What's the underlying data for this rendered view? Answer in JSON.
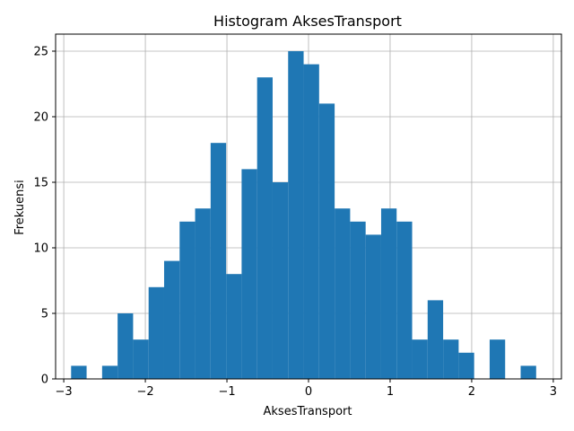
{
  "chart_data": {
    "type": "bar",
    "title": "Histogram AksesTransport",
    "xlabel": "AksesTransport",
    "ylabel": "Frekuensi",
    "xlim": [
      -3.1,
      3.1
    ],
    "ylim": [
      0,
      26.3
    ],
    "grid": true,
    "bar_color": "#1f77b4",
    "bins": [
      {
        "x0": -2.91,
        "x1": -2.72,
        "count": 1
      },
      {
        "x0": -2.72,
        "x1": -2.53,
        "count": 0
      },
      {
        "x0": -2.53,
        "x1": -2.34,
        "count": 1
      },
      {
        "x0": -2.34,
        "x1": -2.15,
        "count": 5
      },
      {
        "x0": -2.15,
        "x1": -1.96,
        "count": 3
      },
      {
        "x0": -1.96,
        "x1": -1.77,
        "count": 7
      },
      {
        "x0": -1.77,
        "x1": -1.58,
        "count": 9
      },
      {
        "x0": -1.58,
        "x1": -1.39,
        "count": 12
      },
      {
        "x0": -1.39,
        "x1": -1.2,
        "count": 13
      },
      {
        "x0": -1.2,
        "x1": -1.01,
        "count": 18
      },
      {
        "x0": -1.01,
        "x1": -0.82,
        "count": 8
      },
      {
        "x0": -0.82,
        "x1": -0.63,
        "count": 16
      },
      {
        "x0": -0.63,
        "x1": -0.44,
        "count": 23
      },
      {
        "x0": -0.44,
        "x1": -0.25,
        "count": 15
      },
      {
        "x0": -0.25,
        "x1": -0.06,
        "count": 25
      },
      {
        "x0": -0.06,
        "x1": 0.13,
        "count": 24
      },
      {
        "x0": 0.13,
        "x1": 0.32,
        "count": 21
      },
      {
        "x0": 0.32,
        "x1": 0.51,
        "count": 13
      },
      {
        "x0": 0.51,
        "x1": 0.7,
        "count": 12
      },
      {
        "x0": 0.7,
        "x1": 0.89,
        "count": 11
      },
      {
        "x0": 0.89,
        "x1": 1.08,
        "count": 13
      },
      {
        "x0": 1.08,
        "x1": 1.27,
        "count": 12
      },
      {
        "x0": 1.27,
        "x1": 1.46,
        "count": 3
      },
      {
        "x0": 1.46,
        "x1": 1.65,
        "count": 6
      },
      {
        "x0": 1.65,
        "x1": 1.84,
        "count": 3
      },
      {
        "x0": 1.84,
        "x1": 2.03,
        "count": 2
      },
      {
        "x0": 2.03,
        "x1": 2.22,
        "count": 0
      },
      {
        "x0": 2.22,
        "x1": 2.41,
        "count": 3
      },
      {
        "x0": 2.41,
        "x1": 2.6,
        "count": 0
      },
      {
        "x0": 2.6,
        "x1": 2.79,
        "count": 1
      }
    ],
    "x_ticks": [
      {
        "value": -3,
        "label": "−3"
      },
      {
        "value": -2,
        "label": "−2"
      },
      {
        "value": -1,
        "label": "−1"
      },
      {
        "value": 0,
        "label": "0"
      },
      {
        "value": 1,
        "label": "1"
      },
      {
        "value": 2,
        "label": "2"
      },
      {
        "value": 3,
        "label": "3"
      }
    ],
    "y_ticks": [
      {
        "value": 0,
        "label": "0"
      },
      {
        "value": 5,
        "label": "5"
      },
      {
        "value": 10,
        "label": "10"
      },
      {
        "value": 15,
        "label": "15"
      },
      {
        "value": 20,
        "label": "20"
      },
      {
        "value": 25,
        "label": "25"
      }
    ]
  }
}
